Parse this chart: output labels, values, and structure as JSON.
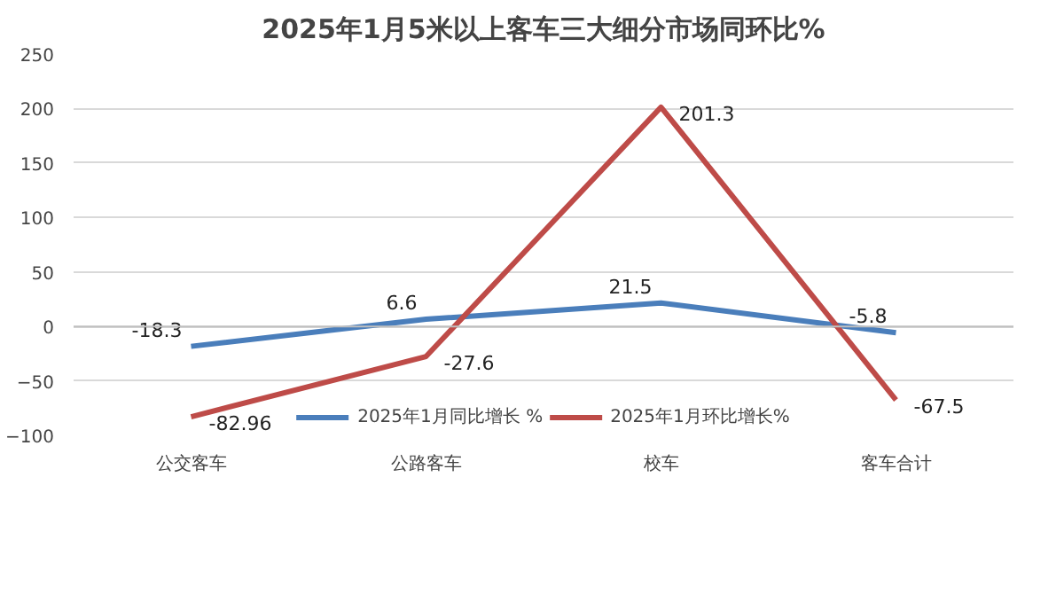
{
  "chart_data": {
    "type": "line",
    "title": "2025年1月5米以上客车三大细分市场同环比%",
    "categories": [
      "公交客车",
      "公路客车",
      "校车",
      "客车合计"
    ],
    "series": [
      {
        "name": "2025年1月同比增长 %",
        "color": "#4a7ebb",
        "values": [
          -18.3,
          6.6,
          21.5,
          -5.8
        ]
      },
      {
        "name": "2025年1月环比增长%",
        "color": "#be4b48",
        "values": [
          -82.96,
          -27.6,
          201.3,
          -67.5
        ]
      }
    ],
    "ylim": [
      -100,
      250
    ],
    "yticks": [
      -100,
      -50,
      0,
      50,
      100,
      150,
      200,
      250
    ],
    "grid": "y",
    "legend": "bottom",
    "data_labels": true,
    "marker": "none",
    "line_style": "solid"
  }
}
